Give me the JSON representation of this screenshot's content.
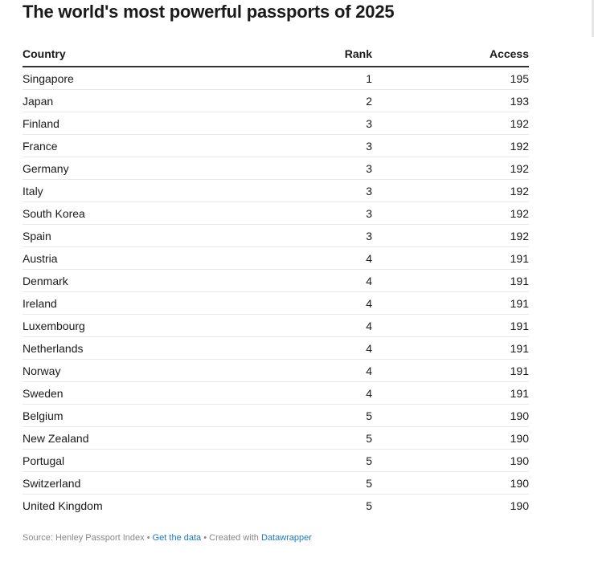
{
  "title": "The world's most powerful passports of 2025",
  "chart_data": {
    "type": "table",
    "title": "The world's most powerful passports of 2025",
    "columns": [
      "Country",
      "Rank",
      "Access"
    ],
    "rows": [
      {
        "country": "Singapore",
        "rank": 1,
        "access": 195
      },
      {
        "country": "Japan",
        "rank": 2,
        "access": 193
      },
      {
        "country": "Finland",
        "rank": 3,
        "access": 192
      },
      {
        "country": "France",
        "rank": 3,
        "access": 192
      },
      {
        "country": "Germany",
        "rank": 3,
        "access": 192
      },
      {
        "country": "Italy",
        "rank": 3,
        "access": 192
      },
      {
        "country": "South Korea",
        "rank": 3,
        "access": 192
      },
      {
        "country": "Spain",
        "rank": 3,
        "access": 192
      },
      {
        "country": "Austria",
        "rank": 4,
        "access": 191
      },
      {
        "country": "Denmark",
        "rank": 4,
        "access": 191
      },
      {
        "country": "Ireland",
        "rank": 4,
        "access": 191
      },
      {
        "country": "Luxembourg",
        "rank": 4,
        "access": 191
      },
      {
        "country": "Netherlands",
        "rank": 4,
        "access": 191
      },
      {
        "country": "Norway",
        "rank": 4,
        "access": 191
      },
      {
        "country": "Sweden",
        "rank": 4,
        "access": 191
      },
      {
        "country": "Belgium",
        "rank": 5,
        "access": 190
      },
      {
        "country": "New Zealand",
        "rank": 5,
        "access": 190
      },
      {
        "country": "Portugal",
        "rank": 5,
        "access": 190
      },
      {
        "country": "Switzerland",
        "rank": 5,
        "access": 190
      },
      {
        "country": "United Kingdom",
        "rank": 5,
        "access": 190
      }
    ]
  },
  "footer": {
    "source_text": "Source: Henley Passport Index •",
    "get_data_link": "Get the data",
    "separator": "• Created with",
    "tool_link": "Datawrapper"
  },
  "colors": {
    "text": "#1a1a1a",
    "link": "#1a79c2",
    "muted": "#888888"
  }
}
